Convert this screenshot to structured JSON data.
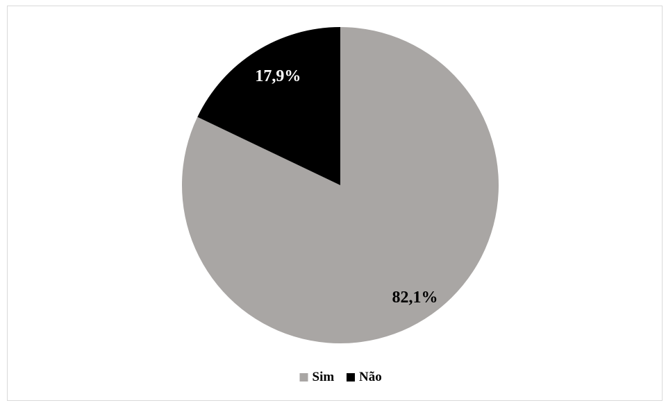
{
  "chart_data": {
    "type": "pie",
    "title": "",
    "start_angle_deg": 0,
    "direction": "clockwise",
    "slices": [
      {
        "label": "Sim",
        "value": 82.1,
        "display": "82,1%",
        "color": "#a9a6a4",
        "label_color": "#000000"
      },
      {
        "label": "Não",
        "value": 17.9,
        "display": "17,9%",
        "color": "#000000",
        "label_color": "#ffffff"
      }
    ],
    "legend": {
      "placement": "bottom"
    }
  }
}
